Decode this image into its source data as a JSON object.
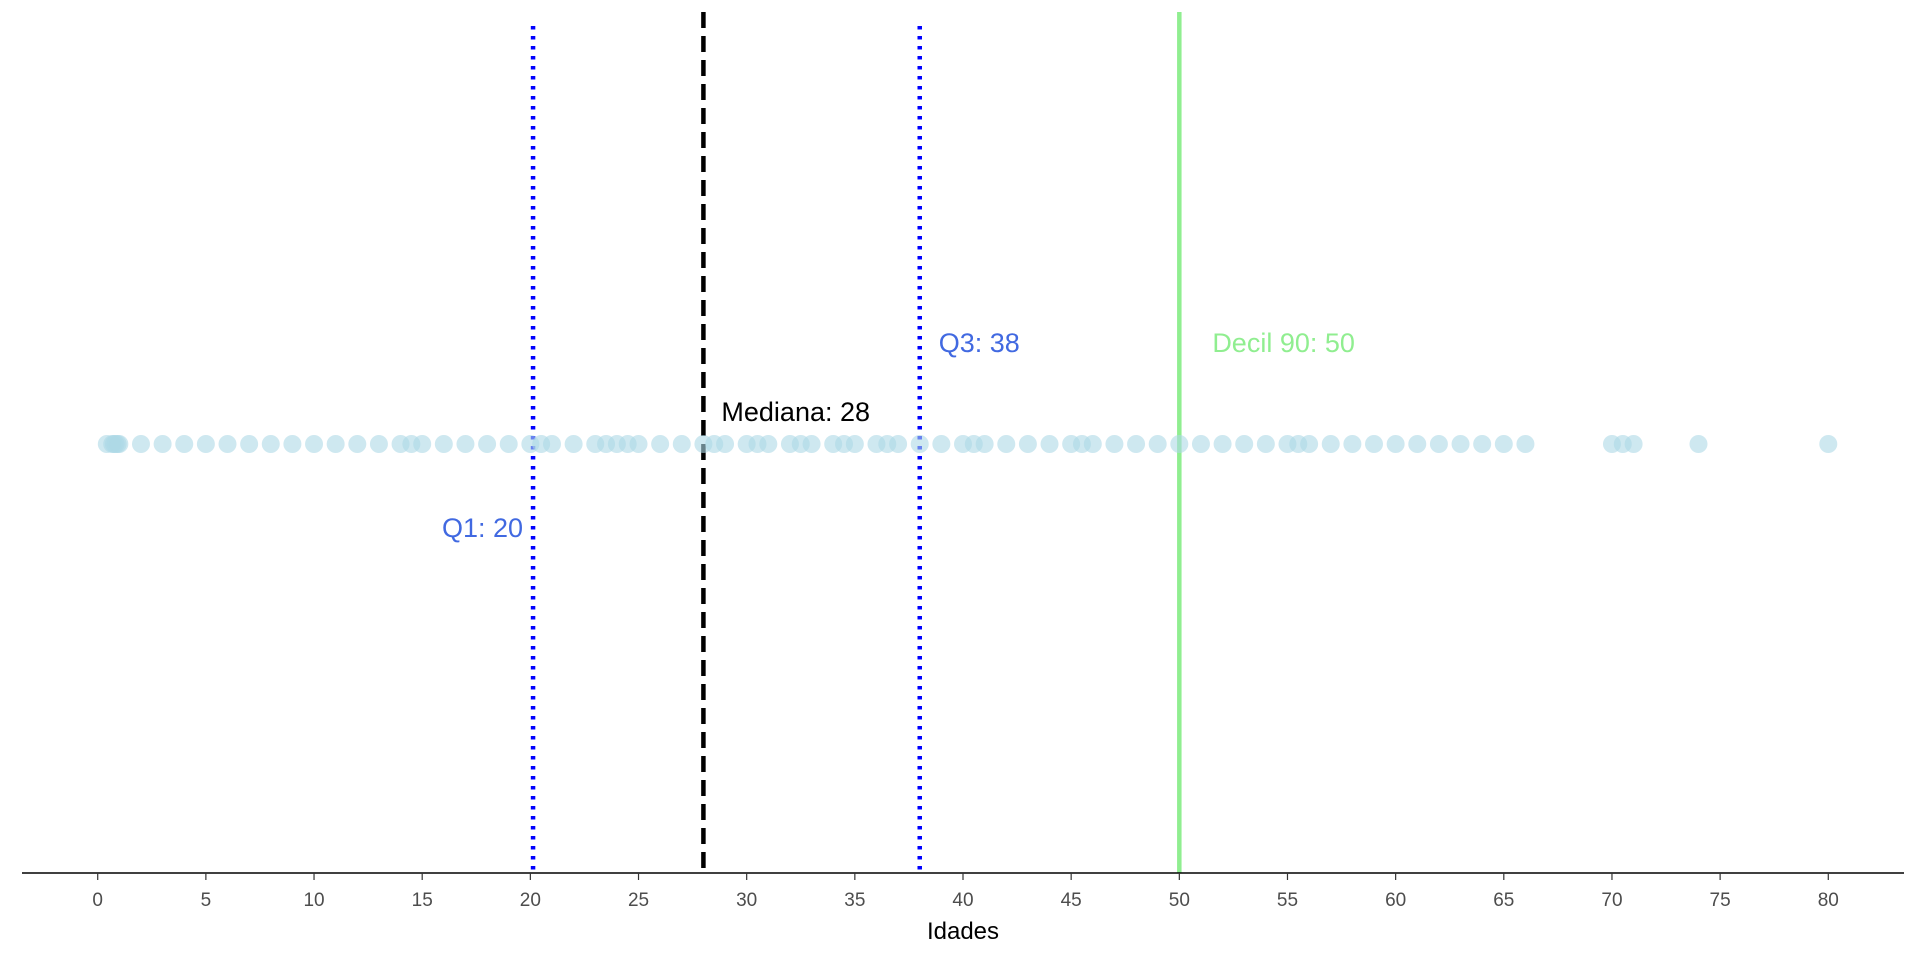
{
  "chart_data": {
    "type": "scatter",
    "title": "",
    "xlabel": "Idades",
    "ylabel": "",
    "xlim": [
      -3.5,
      83.5
    ],
    "x_ticks": [
      0,
      5,
      10,
      15,
      20,
      25,
      30,
      35,
      40,
      45,
      50,
      55,
      60,
      65,
      70,
      75,
      80
    ],
    "grid": false,
    "legend": "none",
    "point_color": "#add8e6",
    "x": [
      0.42,
      0.67,
      0.75,
      0.83,
      0.92,
      1,
      2,
      3,
      4,
      5,
      6,
      7,
      8,
      9,
      10,
      11,
      12,
      13,
      14,
      14.5,
      15,
      16,
      17,
      18,
      19,
      20,
      20.5,
      21,
      22,
      23,
      23.5,
      24,
      24.5,
      25,
      26,
      27,
      28,
      28.5,
      29,
      30,
      30.5,
      31,
      32,
      32.5,
      33,
      34,
      34.5,
      35,
      36,
      36.5,
      37,
      38,
      39,
      40,
      40.5,
      41,
      42,
      43,
      44,
      45,
      45.5,
      46,
      47,
      48,
      49,
      50,
      51,
      52,
      53,
      54,
      55,
      55.5,
      56,
      57,
      58,
      59,
      60,
      61,
      62,
      63,
      64,
      65,
      66,
      70,
      70.5,
      71,
      74,
      80
    ],
    "reference_lines": [
      {
        "label": "Q1:",
        "value": "20",
        "x": 20.125,
        "color": "#0000ff",
        "text_color": "#4169e1",
        "style": "dotted"
      },
      {
        "label": "Mediana:",
        "value": "28",
        "x": 28,
        "color": "#000000",
        "text_color": "#000000",
        "style": "dashed"
      },
      {
        "label": "Q3:",
        "value": "38",
        "x": 38,
        "color": "#0000ff",
        "text_color": "#4169e1",
        "style": "dotted"
      },
      {
        "label": "Decil 90:",
        "value": "50",
        "x": 50,
        "color": "#90ee90",
        "text_color": "#90ee90",
        "style": "solid"
      }
    ]
  }
}
